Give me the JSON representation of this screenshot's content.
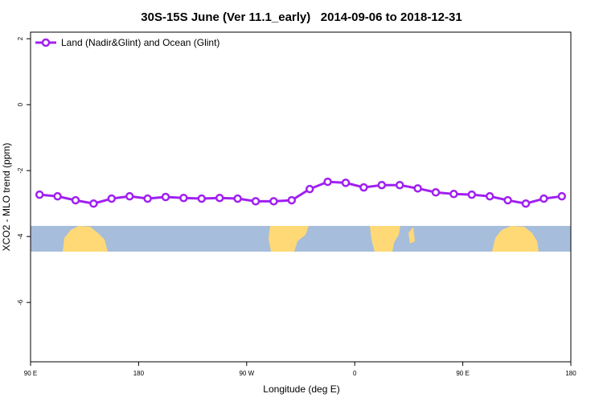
{
  "chart_data": {
    "type": "line",
    "title": "30S-15S June (Ver 11.1_early)   2014-09-06 to 2018-12-31",
    "xlabel": "Longitude (deg E)",
    "ylabel": "XCO2 - MLO trend (ppm)",
    "x": [
      97.5,
      112.5,
      127.5,
      142.5,
      157.5,
      172.5,
      187.5,
      202.5,
      217.5,
      232.5,
      247.5,
      262.5,
      277.5,
      292.5,
      307.5,
      322.5,
      337.5,
      352.5,
      367.5,
      382.5,
      397.5,
      412.5,
      427.5,
      442.5,
      457.5,
      472.5,
      487.5,
      502.5,
      517.5,
      532.5
    ],
    "series": [
      {
        "name": "Land (Nadir&Glint) and Ocean (Glint)",
        "color": "#a020f0",
        "values": [
          -2.73,
          -2.78,
          -2.9,
          -3.0,
          -2.85,
          -2.78,
          -2.85,
          -2.8,
          -2.83,
          -2.85,
          -2.83,
          -2.85,
          -2.93,
          -2.93,
          -2.9,
          -2.56,
          -2.34,
          -2.37,
          -2.51,
          -2.44,
          -2.44,
          -2.54,
          -2.66,
          -2.71,
          -2.73,
          -2.78,
          -2.9,
          -3.0,
          -2.85,
          -2.78
        ]
      }
    ],
    "xlim": [
      90,
      540
    ],
    "xticks": [
      {
        "value": 90,
        "label": "90 E"
      },
      {
        "value": 180,
        "label": "180"
      },
      {
        "value": 270,
        "label": "90 W"
      },
      {
        "value": 360,
        "label": "0"
      },
      {
        "value": 450,
        "label": "90 E"
      },
      {
        "value": 540,
        "label": "180"
      }
    ],
    "ylim": [
      -7.8,
      2.2
    ],
    "yticks": [
      2,
      0,
      -2,
      -4,
      -6
    ],
    "legend": "top-left"
  }
}
